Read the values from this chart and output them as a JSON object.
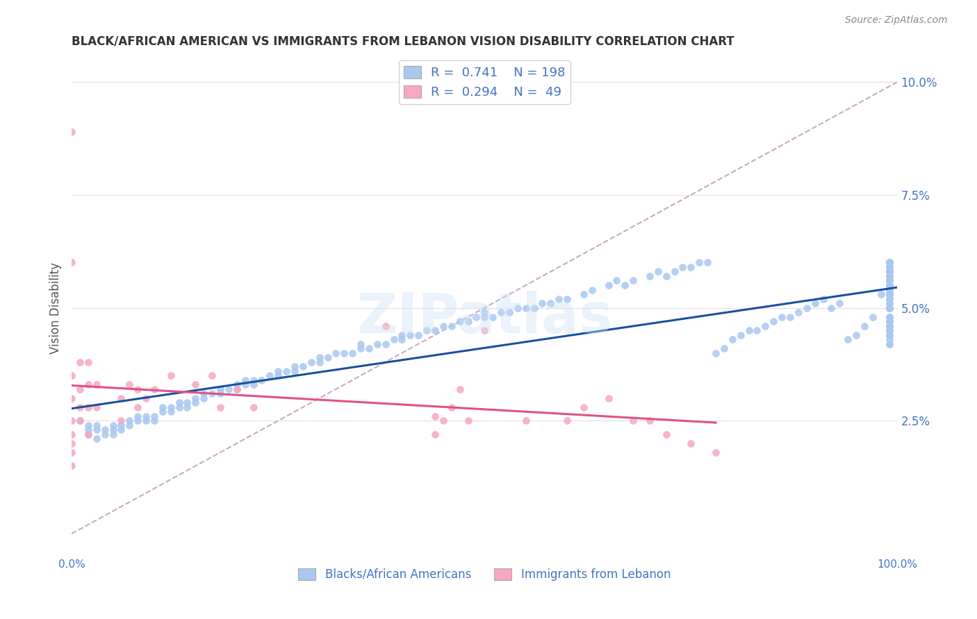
{
  "title": "BLACK/AFRICAN AMERICAN VS IMMIGRANTS FROM LEBANON VISION DISABILITY CORRELATION CHART",
  "source": "Source: ZipAtlas.com",
  "ylabel": "Vision Disability",
  "watermark": "ZIPatlas",
  "blue_R": 0.741,
  "blue_N": 198,
  "pink_R": 0.294,
  "pink_N": 49,
  "blue_color": "#a8c8f0",
  "blue_line_color": "#1a4fa0",
  "pink_color": "#f5a8c0",
  "pink_line_color": "#e0508a",
  "dashed_line_color": "#c8a8c8",
  "xlim": [
    0.0,
    1.0
  ],
  "ylim": [
    -0.005,
    0.105
  ],
  "yticks": [
    0.025,
    0.05,
    0.075,
    0.1
  ],
  "ytick_labels": [
    "2.5%",
    "5.0%",
    "7.5%",
    "10.0%"
  ],
  "blue_scatter_x": [
    0.01,
    0.01,
    0.02,
    0.02,
    0.02,
    0.03,
    0.03,
    0.03,
    0.04,
    0.04,
    0.05,
    0.05,
    0.05,
    0.06,
    0.06,
    0.07,
    0.07,
    0.08,
    0.08,
    0.09,
    0.09,
    0.1,
    0.1,
    0.11,
    0.11,
    0.12,
    0.12,
    0.13,
    0.13,
    0.14,
    0.14,
    0.15,
    0.15,
    0.16,
    0.16,
    0.17,
    0.18,
    0.18,
    0.19,
    0.2,
    0.2,
    0.21,
    0.21,
    0.22,
    0.22,
    0.23,
    0.24,
    0.25,
    0.25,
    0.26,
    0.27,
    0.27,
    0.28,
    0.29,
    0.3,
    0.3,
    0.31,
    0.32,
    0.33,
    0.34,
    0.35,
    0.35,
    0.36,
    0.37,
    0.38,
    0.39,
    0.4,
    0.4,
    0.41,
    0.42,
    0.43,
    0.44,
    0.45,
    0.46,
    0.47,
    0.48,
    0.49,
    0.5,
    0.5,
    0.51,
    0.52,
    0.53,
    0.54,
    0.55,
    0.56,
    0.57,
    0.58,
    0.59,
    0.6,
    0.62,
    0.63,
    0.65,
    0.66,
    0.67,
    0.68,
    0.7,
    0.71,
    0.72,
    0.73,
    0.74,
    0.75,
    0.76,
    0.77,
    0.78,
    0.79,
    0.8,
    0.81,
    0.82,
    0.83,
    0.84,
    0.85,
    0.86,
    0.87,
    0.88,
    0.89,
    0.9,
    0.91,
    0.92,
    0.93,
    0.94,
    0.95,
    0.96,
    0.97,
    0.98,
    0.99,
    0.99,
    0.99,
    0.99,
    0.99,
    0.99,
    0.99,
    0.99,
    0.99,
    0.99,
    0.99,
    0.99,
    0.99,
    0.99,
    0.99,
    0.99,
    0.99,
    0.99,
    0.99,
    0.99,
    0.99,
    0.99,
    0.99,
    0.99,
    0.99,
    0.99,
    0.99,
    0.99,
    0.99,
    0.99,
    0.99,
    0.99,
    0.99,
    0.99,
    0.99,
    0.99,
    0.99,
    0.99,
    0.99,
    0.99,
    0.99,
    0.99,
    0.99,
    0.99,
    0.99,
    0.99,
    0.99,
    0.99,
    0.99,
    0.99,
    0.99,
    0.99,
    0.99,
    0.99,
    0.99,
    0.99,
    0.99,
    0.99,
    0.99,
    0.99,
    0.99,
    0.99,
    0.99,
    0.99,
    0.99,
    0.99,
    0.99,
    0.99,
    0.99,
    0.99
  ],
  "blue_scatter_y": [
    0.025,
    0.025,
    0.022,
    0.024,
    0.023,
    0.023,
    0.024,
    0.021,
    0.022,
    0.023,
    0.022,
    0.023,
    0.024,
    0.023,
    0.024,
    0.024,
    0.025,
    0.025,
    0.026,
    0.025,
    0.026,
    0.025,
    0.026,
    0.028,
    0.027,
    0.027,
    0.028,
    0.029,
    0.028,
    0.029,
    0.028,
    0.03,
    0.029,
    0.03,
    0.031,
    0.031,
    0.031,
    0.032,
    0.032,
    0.033,
    0.032,
    0.033,
    0.034,
    0.033,
    0.034,
    0.034,
    0.035,
    0.035,
    0.036,
    0.036,
    0.036,
    0.037,
    0.037,
    0.038,
    0.038,
    0.039,
    0.039,
    0.04,
    0.04,
    0.04,
    0.041,
    0.042,
    0.041,
    0.042,
    0.042,
    0.043,
    0.043,
    0.044,
    0.044,
    0.044,
    0.045,
    0.045,
    0.046,
    0.046,
    0.047,
    0.047,
    0.048,
    0.048,
    0.049,
    0.048,
    0.049,
    0.049,
    0.05,
    0.05,
    0.05,
    0.051,
    0.051,
    0.052,
    0.052,
    0.053,
    0.054,
    0.055,
    0.056,
    0.055,
    0.056,
    0.057,
    0.058,
    0.057,
    0.058,
    0.059,
    0.059,
    0.06,
    0.06,
    0.04,
    0.041,
    0.043,
    0.044,
    0.045,
    0.045,
    0.046,
    0.047,
    0.048,
    0.048,
    0.049,
    0.05,
    0.051,
    0.052,
    0.05,
    0.051,
    0.043,
    0.044,
    0.046,
    0.048,
    0.053,
    0.058,
    0.059,
    0.06,
    0.044,
    0.046,
    0.047,
    0.05,
    0.053,
    0.054,
    0.055,
    0.057,
    0.059,
    0.055,
    0.056,
    0.058,
    0.06,
    0.043,
    0.044,
    0.046,
    0.048,
    0.05,
    0.052,
    0.053,
    0.047,
    0.05,
    0.053,
    0.055,
    0.056,
    0.058,
    0.059,
    0.06,
    0.051,
    0.054,
    0.056,
    0.058,
    0.06,
    0.055,
    0.057,
    0.042,
    0.045,
    0.048,
    0.05,
    0.053,
    0.055,
    0.058,
    0.042,
    0.044,
    0.046,
    0.048,
    0.05,
    0.052,
    0.054,
    0.056,
    0.057,
    0.059,
    0.06,
    0.045,
    0.048,
    0.051,
    0.053,
    0.056,
    0.058,
    0.044,
    0.047,
    0.05,
    0.053,
    0.055,
    0.057,
    0.06,
    0.058
  ],
  "pink_scatter_x": [
    0.0,
    0.0,
    0.0,
    0.0,
    0.0,
    0.0,
    0.0,
    0.0,
    0.0,
    0.01,
    0.01,
    0.01,
    0.01,
    0.02,
    0.02,
    0.02,
    0.02,
    0.03,
    0.03,
    0.06,
    0.06,
    0.07,
    0.08,
    0.08,
    0.09,
    0.1,
    0.12,
    0.15,
    0.17,
    0.18,
    0.2,
    0.22,
    0.38,
    0.44,
    0.44,
    0.45,
    0.46,
    0.47,
    0.48,
    0.5,
    0.55,
    0.6,
    0.62,
    0.65,
    0.68,
    0.7,
    0.72,
    0.75,
    0.78
  ],
  "pink_scatter_y": [
    0.089,
    0.06,
    0.035,
    0.03,
    0.025,
    0.022,
    0.02,
    0.018,
    0.015,
    0.038,
    0.032,
    0.028,
    0.025,
    0.038,
    0.033,
    0.028,
    0.022,
    0.033,
    0.028,
    0.03,
    0.025,
    0.033,
    0.032,
    0.028,
    0.03,
    0.032,
    0.035,
    0.033,
    0.035,
    0.028,
    0.032,
    0.028,
    0.046,
    0.026,
    0.022,
    0.025,
    0.028,
    0.032,
    0.025,
    0.045,
    0.025,
    0.025,
    0.028,
    0.03,
    0.025,
    0.025,
    0.022,
    0.02,
    0.018
  ],
  "background_color": "#ffffff",
  "grid_color": "#e0e0e0"
}
